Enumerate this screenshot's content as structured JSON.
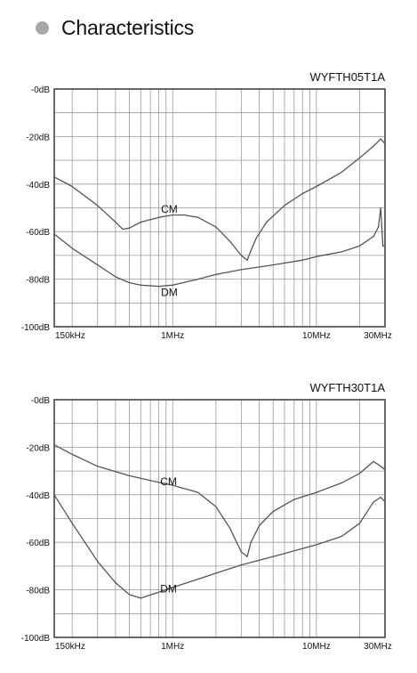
{
  "header": {
    "title": "Characteristics"
  },
  "chart_data": [
    {
      "type": "line",
      "title": "WYFTH05T1A",
      "xscale": "log",
      "xlim": [
        0.15,
        30
      ],
      "ylim": [
        -100,
        0
      ],
      "grid": true,
      "yticks": [
        {
          "v": 0,
          "label": "-0dB"
        },
        {
          "v": -20,
          "label": "-20dB"
        },
        {
          "v": -40,
          "label": "-40dB"
        },
        {
          "v": -60,
          "label": "-60dB"
        },
        {
          "v": -80,
          "label": "-80dB"
        },
        {
          "v": -100,
          "label": "-100dB"
        }
      ],
      "xticks": [
        {
          "v": 0.15,
          "label": "150kHz"
        },
        {
          "v": 1,
          "label": "1MHz"
        },
        {
          "v": 10,
          "label": "10MHz"
        },
        {
          "v": 30,
          "label": "30MHz"
        }
      ],
      "series": [
        {
          "name": "CM",
          "label_at": [
            0.83,
            -52
          ],
          "x": [
            0.15,
            0.2,
            0.3,
            0.4,
            0.45,
            0.5,
            0.6,
            0.8,
            1.0,
            1.2,
            1.5,
            2.0,
            2.5,
            3.0,
            3.3,
            3.5,
            3.8,
            4.5,
            6,
            8,
            10,
            15,
            20,
            25,
            28,
            30
          ],
          "y": [
            -37,
            -41,
            -49,
            -56,
            -59,
            -58.5,
            -56,
            -54,
            -53,
            -53,
            -54,
            -58,
            -64,
            -70,
            -72,
            -68,
            -63,
            -56,
            -49,
            -44,
            -41,
            -35,
            -29,
            -24,
            -21,
            -23
          ]
        },
        {
          "name": "DM",
          "label_at": [
            0.83,
            -87
          ],
          "x": [
            0.15,
            0.2,
            0.3,
            0.4,
            0.5,
            0.6,
            0.8,
            1.0,
            1.5,
            2.0,
            3.0,
            5,
            8,
            10,
            15,
            20,
            25,
            27,
            28,
            29,
            30
          ],
          "y": [
            -61,
            -67,
            -74,
            -79,
            -81.5,
            -82.5,
            -83,
            -82.5,
            -80,
            -78,
            -76,
            -74,
            -72,
            -70.5,
            -68.5,
            -66,
            -62,
            -58,
            -50,
            -66,
            -66
          ]
        }
      ]
    },
    {
      "type": "line",
      "title": "WYFTH30T1A",
      "xscale": "log",
      "xlim": [
        0.15,
        30
      ],
      "ylim": [
        -100,
        0
      ],
      "grid": true,
      "yticks": [
        {
          "v": 0,
          "label": "-0dB"
        },
        {
          "v": -20,
          "label": "-20dB"
        },
        {
          "v": -40,
          "label": "-40dB"
        },
        {
          "v": -60,
          "label": "-60dB"
        },
        {
          "v": -80,
          "label": "-80dB"
        },
        {
          "v": -100,
          "label": "-100dB"
        }
      ],
      "xticks": [
        {
          "v": 0.15,
          "label": "150kHz"
        },
        {
          "v": 1,
          "label": "1MHz"
        },
        {
          "v": 10,
          "label": "10MHz"
        },
        {
          "v": 30,
          "label": "30MHz"
        }
      ],
      "series": [
        {
          "name": "CM",
          "label_at": [
            0.82,
            -36
          ],
          "x": [
            0.15,
            0.2,
            0.3,
            0.5,
            0.7,
            1.0,
            1.5,
            2.0,
            2.5,
            3.0,
            3.3,
            3.5,
            4.0,
            5,
            7,
            10,
            15,
            20,
            25,
            28,
            30
          ],
          "y": [
            -19,
            -23,
            -28,
            -32,
            -34,
            -36,
            -39,
            -45,
            -54,
            -64,
            -66,
            -60,
            -53,
            -47,
            -42,
            -39,
            -35,
            -31,
            -26,
            -28,
            -29.5
          ]
        },
        {
          "name": "DM",
          "label_at": [
            0.82,
            -81
          ],
          "x": [
            0.15,
            0.2,
            0.3,
            0.4,
            0.5,
            0.6,
            0.8,
            1.0,
            1.5,
            2.0,
            3.0,
            5,
            10,
            15,
            20,
            25,
            28,
            30
          ],
          "y": [
            -40,
            -52,
            -68,
            -77,
            -82,
            -83.5,
            -81,
            -79,
            -75.5,
            -73,
            -69.5,
            -66,
            -61,
            -57.5,
            -52,
            -43,
            -41,
            -43
          ]
        }
      ]
    }
  ]
}
